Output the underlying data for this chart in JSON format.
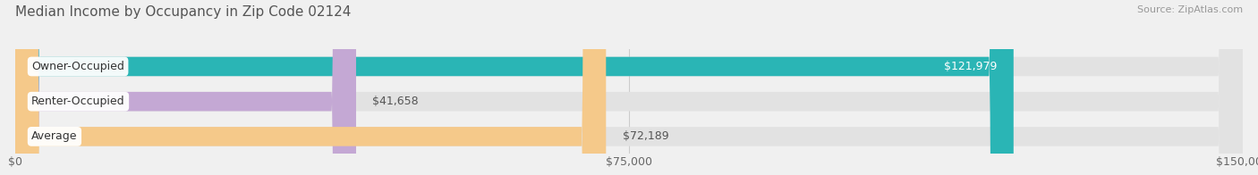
{
  "title": "Median Income by Occupancy in Zip Code 02124",
  "source": "Source: ZipAtlas.com",
  "categories": [
    "Owner-Occupied",
    "Renter-Occupied",
    "Average"
  ],
  "values": [
    121979,
    41658,
    72189
  ],
  "bar_colors": [
    "#2ab5b5",
    "#c4a8d4",
    "#f5c98a"
  ],
  "value_labels": [
    "$121,979",
    "$41,658",
    "$72,189"
  ],
  "x_ticks": [
    0,
    75000,
    150000
  ],
  "x_tick_labels": [
    "$0",
    "$75,000",
    "$150,000"
  ],
  "xlim": [
    0,
    150000
  ],
  "bar_height": 0.55,
  "bg_color": "#f0f0f0",
  "bar_bg_color": "#e2e2e2",
  "title_fontsize": 11,
  "source_fontsize": 8,
  "label_fontsize": 9,
  "tick_fontsize": 9
}
